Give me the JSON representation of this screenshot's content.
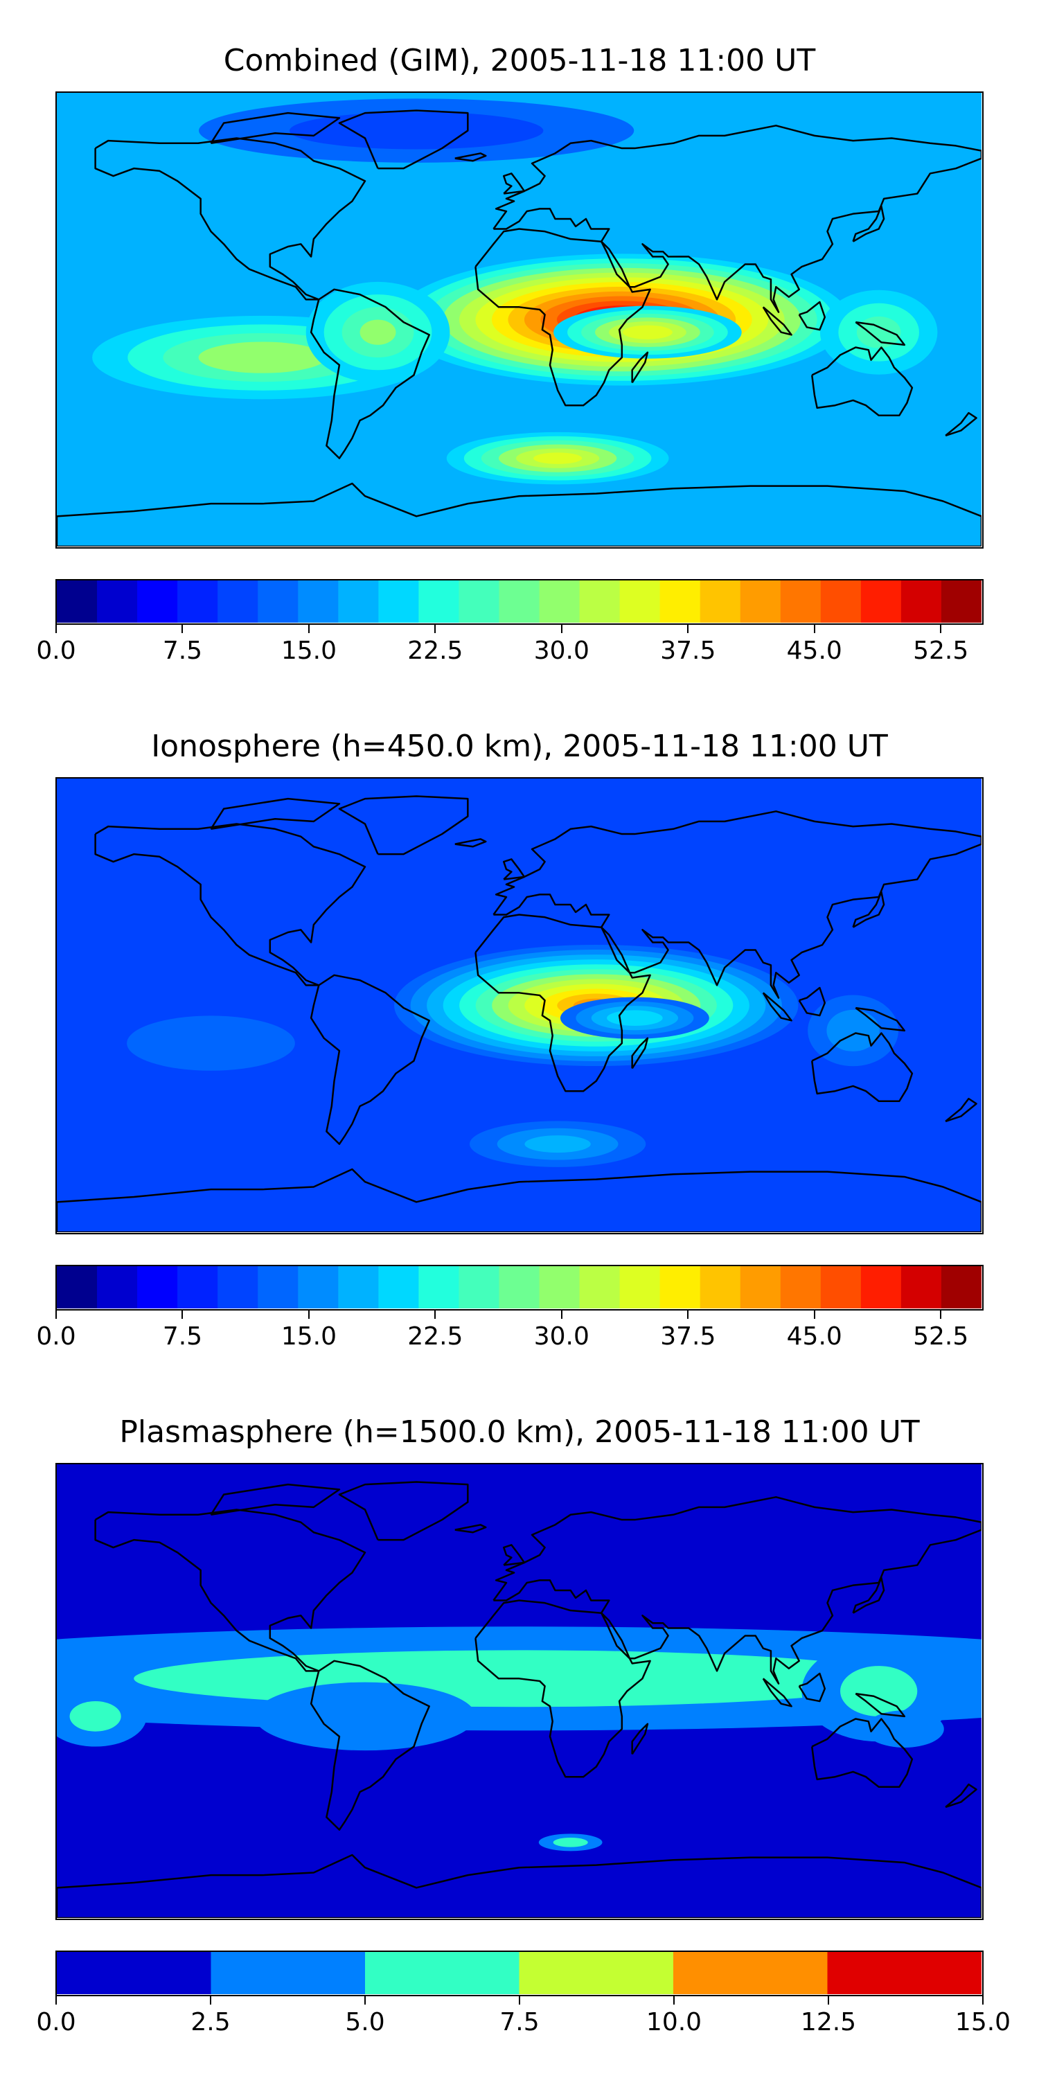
{
  "chart_data": [
    {
      "type": "heatmap",
      "title": "Combined (GIM), 2005-11-18 11:00 UT",
      "colorbar": {
        "min": 0.0,
        "max": 55.0,
        "step": 2.5,
        "tick_values": [
          0.0,
          7.5,
          15.0,
          22.5,
          30.0,
          37.5,
          45.0,
          52.5
        ],
        "tick_labels": [
          "0.0",
          "7.5",
          "15.0",
          "22.5",
          "30.0",
          "37.5",
          "45.0",
          "52.5"
        ],
        "colors": [
          "#00008f",
          "#0000cf",
          "#0000ff",
          "#0022ff",
          "#0044ff",
          "#0066ff",
          "#008cff",
          "#00b2ff",
          "#00d8ff",
          "#22ffdd",
          "#44ffbb",
          "#6dff92",
          "#92ff6d",
          "#bbff44",
          "#ddff22",
          "#ffee00",
          "#ffc400",
          "#ff9c00",
          "#ff7600",
          "#ff4e00",
          "#ff1e00",
          "#d40000",
          "#a00000"
        ]
      },
      "map_fields": {
        "background_level": 7,
        "blobs": [
          {
            "lon": 40,
            "lat": 0,
            "rlon": 95,
            "rlat": 28,
            "peak": 35
          },
          {
            "lon": 50,
            "lat": -5,
            "rlon": 42,
            "rlat": 12,
            "peak": 17
          },
          {
            "lon": -100,
            "lat": -15,
            "rlon": 80,
            "rlat": 20,
            "peak": 12
          },
          {
            "lon": -55,
            "lat": -5,
            "rlon": 35,
            "rlat": 25,
            "peak": 10
          },
          {
            "lon": 15,
            "lat": -55,
            "rlon": 50,
            "rlat": 12,
            "peak": 16
          },
          {
            "lon": 140,
            "lat": -5,
            "rlon": 30,
            "rlat": 22,
            "peak": 8
          },
          {
            "lon": -40,
            "lat": 75,
            "rlon": 120,
            "rlat": 18,
            "peak": -6
          }
        ]
      }
    },
    {
      "type": "heatmap",
      "title": "Ionosphere  (h=450.0 km), 2005-11-18 11:00 UT",
      "colorbar": {
        "min": 0.0,
        "max": 55.0,
        "step": 2.5,
        "tick_values": [
          0.0,
          7.5,
          15.0,
          22.5,
          30.0,
          37.5,
          45.0,
          52.5
        ],
        "tick_labels": [
          "0.0",
          "7.5",
          "15.0",
          "22.5",
          "30.0",
          "37.5",
          "45.0",
          "52.5"
        ],
        "colors": [
          "#00008f",
          "#0000cf",
          "#0000ff",
          "#0022ff",
          "#0044ff",
          "#0066ff",
          "#008cff",
          "#00b2ff",
          "#00d8ff",
          "#22ffdd",
          "#44ffbb",
          "#6dff92",
          "#92ff6d",
          "#bbff44",
          "#ddff22",
          "#ffee00",
          "#ffc400",
          "#ff9c00",
          "#ff7600",
          "#ff4e00",
          "#ff1e00",
          "#d40000",
          "#a00000"
        ]
      },
      "map_fields": {
        "background_level": 4,
        "blobs": [
          {
            "lon": 30,
            "lat": 0,
            "rlon": 85,
            "rlat": 26,
            "peak": 31
          },
          {
            "lon": 45,
            "lat": -5,
            "rlon": 35,
            "rlat": 10,
            "peak": 12
          },
          {
            "lon": -120,
            "lat": -15,
            "rlon": 60,
            "rlat": 20,
            "peak": 3
          },
          {
            "lon": 15,
            "lat": -55,
            "rlon": 45,
            "rlat": 12,
            "peak": 8
          },
          {
            "lon": 130,
            "lat": -10,
            "rlon": 25,
            "rlat": 20,
            "peak": 6
          }
        ]
      }
    },
    {
      "type": "heatmap",
      "title": "Plasmasphere (h=1500.0 km), 2005-11-18 11:00 UT",
      "colorbar": {
        "min": 0.0,
        "max": 15.0,
        "step": 2.5,
        "tick_values": [
          0.0,
          2.5,
          5.0,
          7.5,
          10.0,
          12.5,
          15.0
        ],
        "tick_labels": [
          "0.0",
          "2.5",
          "5.0",
          "7.5",
          "10.0",
          "12.5",
          "15.0"
        ],
        "colors": [
          "#0000cf",
          "#0080ff",
          "#32ffc4",
          "#c4ff32",
          "#ff8f00",
          "#e00000"
        ]
      },
      "map_fields": {
        "background_level": 0,
        "blobs": [
          {
            "lon": 0,
            "lat": 5,
            "rlon": 400,
            "rlat": 30,
            "peak": 5.5
          },
          {
            "lon": -60,
            "lat": -10,
            "rlon": 70,
            "rlat": 22,
            "peak": 4
          },
          {
            "lon": 140,
            "lat": 0,
            "rlon": 45,
            "rlat": 30,
            "peak": 5
          },
          {
            "lon": -165,
            "lat": -10,
            "rlon": 30,
            "rlat": 18,
            "peak": 5
          },
          {
            "lon": 150,
            "lat": -15,
            "rlon": 25,
            "rlat": 12,
            "peak": 4
          },
          {
            "lon": 20,
            "lat": -60,
            "rlon": 18,
            "rlat": 5,
            "peak": 5.5
          }
        ]
      }
    }
  ]
}
